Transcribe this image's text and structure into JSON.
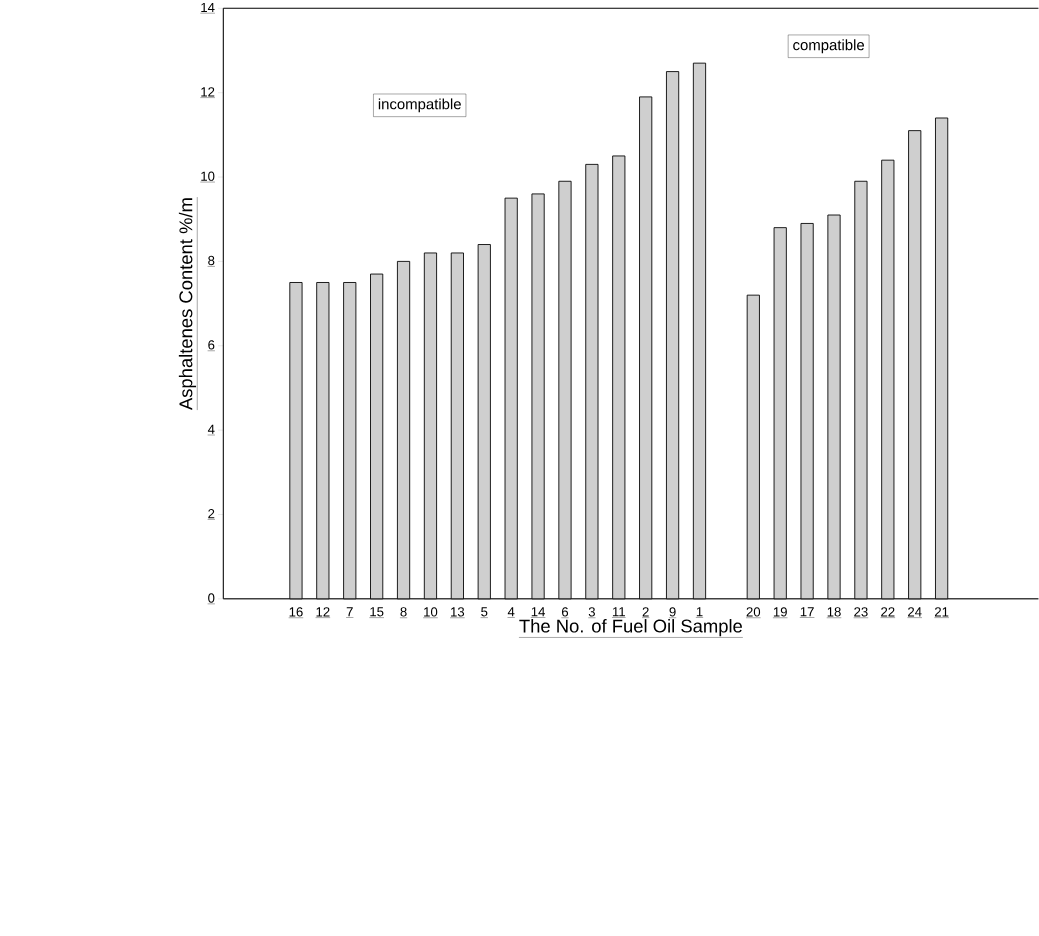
{
  "chart_data": {
    "type": "bar",
    "xlabel": "The No. of Fuel Oil Sample",
    "ylabel": "Asphaltenes Content %/m",
    "categories": [
      "16",
      "12",
      "7",
      "15",
      "8",
      "10",
      "13",
      "5",
      "4",
      "14",
      "6",
      "3",
      "11",
      "2",
      "9",
      "1",
      null,
      "20",
      "19",
      "17",
      "18",
      "23",
      "22",
      "24",
      "21"
    ],
    "values": [
      7.5,
      7.5,
      7.5,
      7.7,
      8.0,
      8.2,
      8.2,
      8.4,
      9.5,
      9.6,
      9.9,
      10.3,
      10.5,
      11.9,
      12.5,
      12.7,
      null,
      7.2,
      8.8,
      8.9,
      9.1,
      9.9,
      10.4,
      11.1,
      11.4
    ],
    "color": "#cfcfcf",
    "ylim": [
      0,
      14
    ],
    "yticks": [
      0,
      2,
      4,
      6,
      8,
      10,
      12,
      14
    ],
    "annotations": [
      "incompatible",
      "compatible"
    ]
  }
}
